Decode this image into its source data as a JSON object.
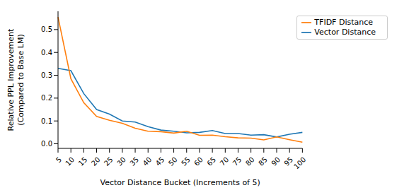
{
  "chart_data": {
    "type": "line",
    "x_label": "Vector Distance Bucket (Increments of 5)",
    "y_label": "Relative PPL Improvement\n(Compared to Base LM)",
    "categories": [
      "5",
      "10",
      "15",
      "20",
      "25",
      "30",
      "35",
      "40",
      "45",
      "50",
      "55",
      "60",
      "65",
      "70",
      "75",
      "80",
      "85",
      "90",
      "95",
      "100"
    ],
    "series": [
      {
        "name": "Vector Distance",
        "color": "#1f77b4",
        "values": [
          0.33,
          0.32,
          0.22,
          0.15,
          0.13,
          0.1,
          0.095,
          0.075,
          0.06,
          0.055,
          0.048,
          0.05,
          0.058,
          0.045,
          0.045,
          0.038,
          0.04,
          0.03,
          0.042,
          0.05
        ]
      },
      {
        "name": "TFIDF Distance",
        "color": "#ff7f0e",
        "values": [
          0.555,
          0.285,
          0.18,
          0.12,
          0.103,
          0.09,
          0.068,
          0.055,
          0.053,
          0.047,
          0.055,
          0.037,
          0.038,
          0.031,
          0.026,
          0.025,
          0.017,
          0.03,
          0.018,
          0.007
        ]
      }
    ],
    "ylim": [
      -0.02,
      0.58
    ],
    "yticks": [
      {
        "value": 0,
        "label": "0.0"
      },
      {
        "value": 0.1,
        "label": "0.1"
      },
      {
        "value": 0.2,
        "label": "0.2"
      },
      {
        "value": 0.3,
        "label": "0.3"
      },
      {
        "value": 0.4,
        "label": "0.4"
      },
      {
        "value": 0.5,
        "label": "0.5"
      }
    ],
    "grid": false,
    "legend": "upper right"
  }
}
